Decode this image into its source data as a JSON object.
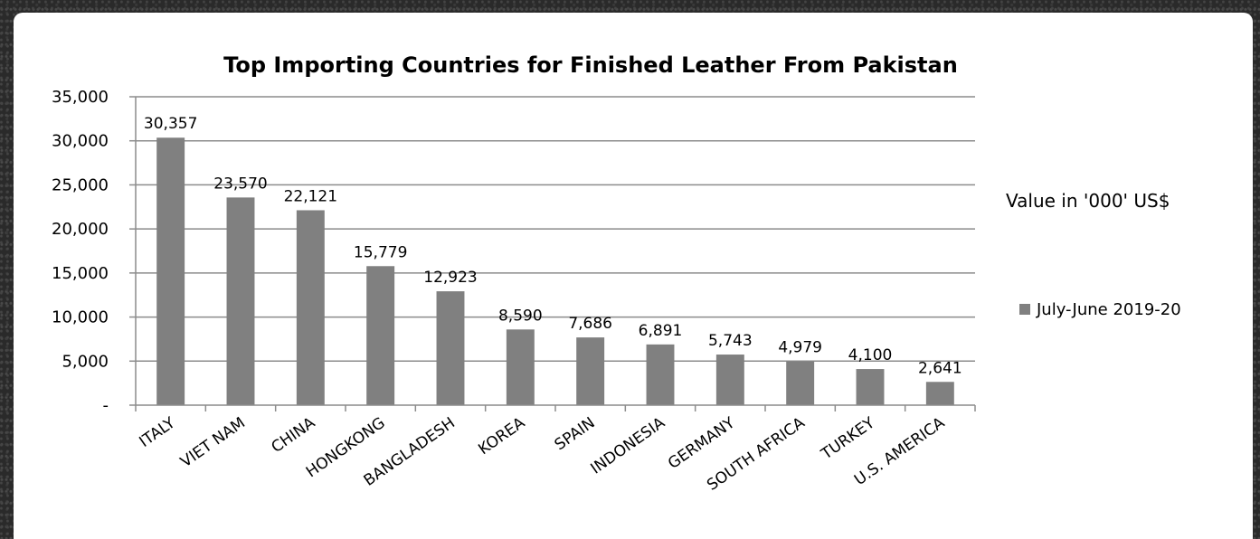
{
  "chart_data": {
    "type": "bar",
    "title": "Top Importing Countries for Finished Leather From Pakistan",
    "unit_note": "Value in '000' US$",
    "categories": [
      "ITALY",
      "VIET NAM",
      "CHINA",
      "HONGKONG",
      "BANGLADESH",
      "KOREA",
      "SPAIN",
      "INDONESIA",
      "GERMANY",
      "SOUTH AFRICA",
      "TURKEY",
      "U.S. AMERICA"
    ],
    "series": [
      {
        "name": "July-June 2019-20",
        "color": "#808080",
        "values": [
          30357,
          23570,
          22121,
          15779,
          12923,
          8590,
          7686,
          6891,
          5743,
          4979,
          4100,
          2641
        ],
        "labels": [
          "30,357",
          "23,570",
          "22,121",
          "15,779",
          "12,923",
          "8,590",
          "7,686",
          "6,891",
          "5,743",
          "4,979",
          "4,100",
          "2,641"
        ]
      }
    ],
    "ylim": [
      0,
      35000
    ],
    "yticks": [
      0,
      5000,
      10000,
      15000,
      20000,
      25000,
      30000,
      35000
    ],
    "ytick_labels": [
      "-",
      "5,000",
      "10,000",
      "15,000",
      "20,000",
      "25,000",
      "30,000",
      "35,000"
    ],
    "grid": true,
    "legend_position": "right"
  }
}
